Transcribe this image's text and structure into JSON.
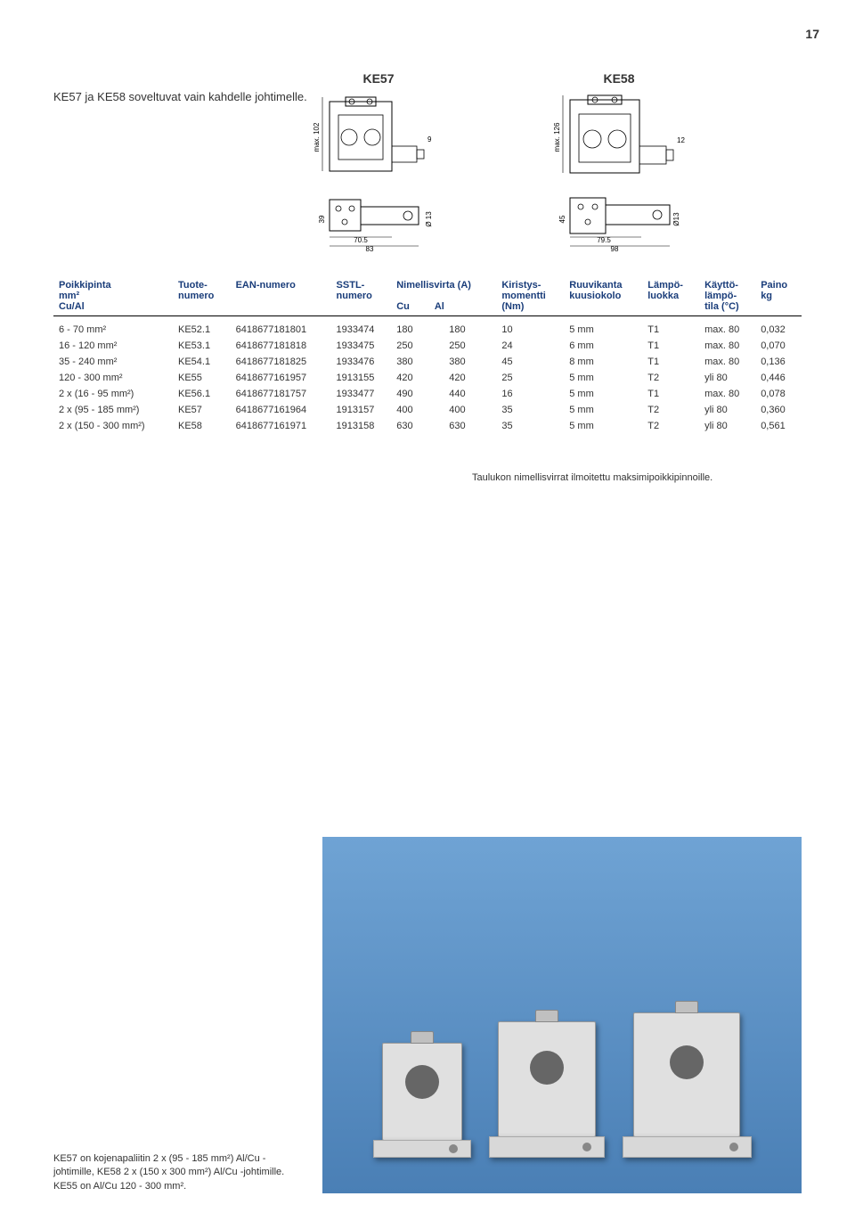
{
  "page_number": "17",
  "intro_text": "KE57 ja KE58 soveltuvat vain kahdelle johtimelle.",
  "drawings": {
    "ke57": {
      "title": "KE57",
      "height_label": "max. 102",
      "side_label": "9",
      "base_depth": "39",
      "base_w1": "70.5",
      "base_w2": "83",
      "hole_dia": "Ø 13"
    },
    "ke58": {
      "title": "KE58",
      "height_label": "max. 126",
      "side_label": "12",
      "base_depth": "45",
      "base_w1": "79.5",
      "base_w2": "98",
      "hole_dia": "Ø13"
    }
  },
  "table": {
    "headers": {
      "col1a": "Poikkipinta",
      "col1b": "mm²",
      "col1c": "Cu/Al",
      "col2a": "Tuote-",
      "col2b": "numero",
      "col3": "EAN-numero",
      "col4a": "SSTL-",
      "col4b": "numero",
      "col5": "Nimellisvirta (A)",
      "col5a": "Cu",
      "col5b": "Al",
      "col6a": "Kiristys-",
      "col6b": "momentti",
      "col6c": "(Nm)",
      "col7a": "Ruuvikanta",
      "col7b": "kuusiokolo",
      "col8a": "Lämpö-",
      "col8b": "luokka",
      "col9a": "Käyttö-",
      "col9b": "lämpö-",
      "col9c": "tila (°C)",
      "col10a": "Paino",
      "col10b": "kg"
    },
    "rows": [
      {
        "c1": "6 - 70 mm²",
        "c2": "KE52.1",
        "c3": "6418677181801",
        "c4": "1933474",
        "c5": "180",
        "c6": "180",
        "c7": "10",
        "c8": "5 mm",
        "c9": "T1",
        "c10": "max. 80",
        "c11": "0,032"
      },
      {
        "c1": "16 - 120 mm²",
        "c2": "KE53.1",
        "c3": "6418677181818",
        "c4": "1933475",
        "c5": "250",
        "c6": "250",
        "c7": "24",
        "c8": "6 mm",
        "c9": "T1",
        "c10": "max. 80",
        "c11": "0,070"
      },
      {
        "c1": "35 - 240 mm²",
        "c2": "KE54.1",
        "c3": "6418677181825",
        "c4": "1933476",
        "c5": "380",
        "c6": "380",
        "c7": "45",
        "c8": "8 mm",
        "c9": "T1",
        "c10": "max. 80",
        "c11": "0,136"
      },
      {
        "c1": "120 - 300 mm²",
        "c2": "KE55",
        "c3": "6418677161957",
        "c4": "1913155",
        "c5": "420",
        "c6": "420",
        "c7": "25",
        "c8": "5 mm",
        "c9": "T2",
        "c10": "yli 80",
        "c11": "0,446"
      },
      {
        "c1": "2 x (16 - 95 mm²)",
        "c2": "KE56.1",
        "c3": "6418677181757",
        "c4": "1933477",
        "c5": "490",
        "c6": "440",
        "c7": "16",
        "c8": "5 mm",
        "c9": "T1",
        "c10": "max. 80",
        "c11": "0,078"
      },
      {
        "c1": "2 x (95 - 185 mm²)",
        "c2": "KE57",
        "c3": "6418677161964",
        "c4": "1913157",
        "c5": "400",
        "c6": "400",
        "c7": "35",
        "c8": "5 mm",
        "c9": "T2",
        "c10": "yli 80",
        "c11": "0,360"
      },
      {
        "c1": "2 x (150 - 300 mm²)",
        "c2": "KE58",
        "c3": "6418677161971",
        "c4": "1913158",
        "c5": "630",
        "c6": "630",
        "c7": "35",
        "c8": "5 mm",
        "c9": "T2",
        "c10": "yli 80",
        "c11": "0,561"
      }
    ]
  },
  "footnote": "Taulukon nimellisvirrat ilmoitettu maksimipoikkipinnoille.",
  "bottom_note": "KE57 on kojenapaliitin 2 x (95 - 185 mm²) Al/Cu -johtimille, KE58 2 x (150 x 300 mm²) Al/Cu -johtimille. KE55 on Al/Cu 120 - 300 mm²."
}
